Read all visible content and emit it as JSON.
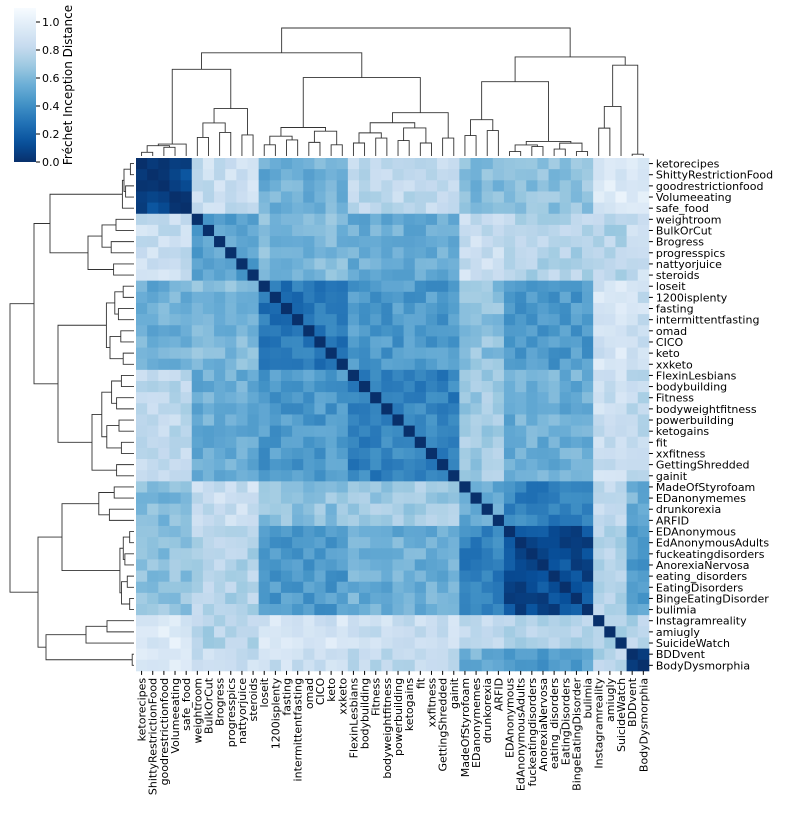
{
  "chart_data": {
    "type": "heatmap",
    "title": "",
    "colorbar": {
      "label": "Fréchet Inception Distance",
      "ticks": [
        "0.0",
        "0.2",
        "0.4",
        "0.6",
        "0.8",
        "1.0"
      ],
      "range": [
        0.0,
        1.1
      ],
      "colormap": [
        "#f7fbff",
        "#deebf7",
        "#c6dbef",
        "#9ecae1",
        "#6baed6",
        "#4292c6",
        "#2171b5",
        "#08519c",
        "#08306b"
      ]
    },
    "dendrograms": [
      "top",
      "left"
    ],
    "labels": [
      "ketorecipes",
      "ShittyRestrictionFood",
      "goodrestrictionfood",
      "Volumeeating",
      "safe_food",
      "weightroom",
      "BulkOrCut",
      "Brogress",
      "progresspics",
      "nattyorjuice",
      "steroids",
      "loseit",
      "1200isplenty",
      "fasting",
      "intermittentfasting",
      "omad",
      "CICO",
      "keto",
      "xxketo",
      "FlexinLesbians",
      "bodybuilding",
      "Fitness",
      "bodyweightfitness",
      "powerbuilding",
      "ketogains",
      "fit",
      "xxfitness",
      "GettingShredded",
      "gainit",
      "MadeOfStyrofoam",
      "EDanonymemes",
      "drunkorexia",
      "ARFID",
      "EDAnonymous",
      "EdAnonymousAdults",
      "fuckeatingdisorders",
      "AnorexiaNervosa",
      "eating_disorders",
      "EatingDisorders",
      "BingeEatingDisorder",
      "bulimia",
      "Instagramreality",
      "amiugly",
      "SuicideWatch",
      "BDDvent",
      "BodyDysmorphia"
    ],
    "cluster_groups": [
      {
        "members": [
          0,
          1,
          2,
          3,
          4
        ],
        "within": 0.1
      },
      {
        "members": [
          5,
          6,
          7,
          8,
          9,
          10
        ],
        "within": 0.5
      },
      {
        "members": [
          11,
          12,
          13,
          14,
          15,
          16,
          17,
          18
        ],
        "within": 0.3
      },
      {
        "members": [
          19,
          20,
          21,
          22,
          23,
          24,
          25,
          26,
          27,
          28
        ],
        "within": 0.35
      },
      {
        "members": [
          29,
          30,
          31,
          32
        ],
        "within": 0.55
      },
      {
        "members": [
          33,
          34,
          35,
          36,
          37,
          38,
          39,
          40
        ],
        "within": 0.12
      },
      {
        "members": [
          41,
          42,
          43
        ],
        "within": 0.75
      },
      {
        "members": [
          44,
          45
        ],
        "within": 0.05
      }
    ],
    "group_distances": [
      [
        0.1,
        0.85,
        0.55,
        0.8,
        0.6,
        0.65,
        0.95,
        0.95
      ],
      [
        0.85,
        0.5,
        0.6,
        0.55,
        0.85,
        0.75,
        0.75,
        0.85
      ],
      [
        0.55,
        0.6,
        0.3,
        0.45,
        0.65,
        0.45,
        0.9,
        0.85
      ],
      [
        0.8,
        0.55,
        0.45,
        0.35,
        0.7,
        0.55,
        0.85,
        0.8
      ],
      [
        0.6,
        0.85,
        0.65,
        0.7,
        0.55,
        0.35,
        0.8,
        0.55
      ],
      [
        0.65,
        0.75,
        0.45,
        0.55,
        0.35,
        0.12,
        0.75,
        0.45
      ],
      [
        0.95,
        0.75,
        0.9,
        0.85,
        0.8,
        0.75,
        0.75,
        0.75
      ],
      [
        0.95,
        0.85,
        0.85,
        0.8,
        0.55,
        0.45,
        0.75,
        0.05
      ]
    ],
    "diagonal": 0.0
  }
}
